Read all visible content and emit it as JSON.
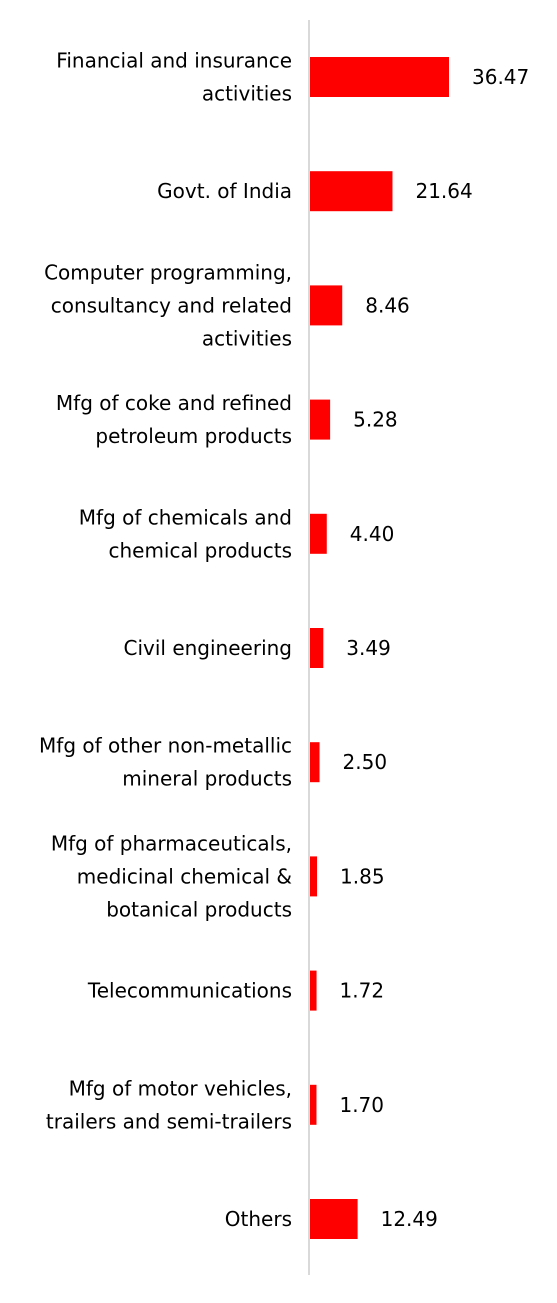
{
  "chart_data": {
    "type": "bar",
    "orientation": "horizontal",
    "categories": [
      [
        "Financial and insurance",
        "activities"
      ],
      [
        "Govt. of India"
      ],
      [
        "Computer programming,",
        "consultancy and related",
        "activities"
      ],
      [
        "Mfg of coke and refined",
        "petroleum products"
      ],
      [
        "Mfg of chemicals and",
        "chemical products"
      ],
      [
        "Civil engineering"
      ],
      [
        "Mfg of other non-metallic",
        "mineral products"
      ],
      [
        "Mfg of pharmaceuticals,",
        "medicinal chemical &",
        "botanical products"
      ],
      [
        "Telecommunications"
      ],
      [
        "Mfg of motor vehicles,",
        "trailers and semi-trailers"
      ],
      [
        "Others"
      ]
    ],
    "values": [
      36.47,
      21.64,
      8.46,
      5.28,
      4.4,
      3.49,
      2.5,
      1.85,
      1.72,
      1.7,
      12.49
    ],
    "value_labels": [
      "36.47",
      "21.64",
      "8.46",
      "5.28",
      "4.40",
      "3.49",
      "2.50",
      "1.85",
      "1.72",
      "1.70",
      "12.49"
    ],
    "title": "",
    "xlabel": "",
    "ylabel": "",
    "xlim": [
      0,
      36.47
    ],
    "grid": false,
    "legend": "none",
    "bar_color": "#ff0000",
    "axis_color": "#d9d9d9"
  }
}
